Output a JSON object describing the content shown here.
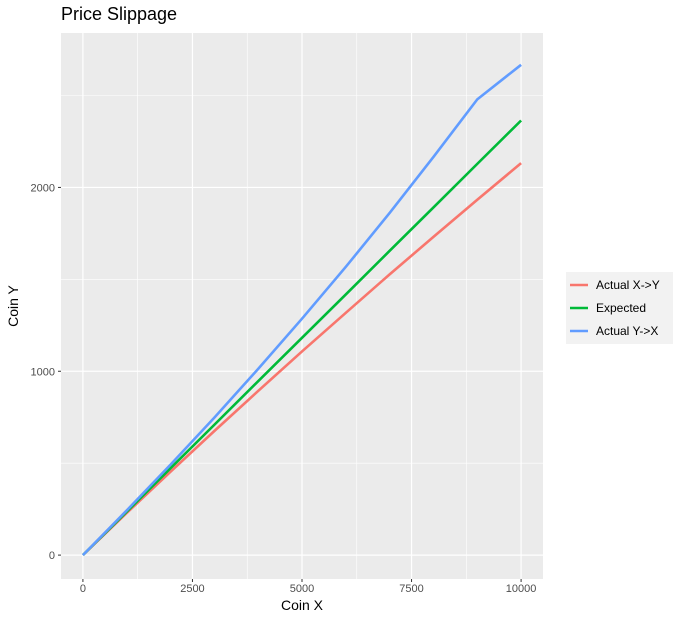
{
  "chart_data": {
    "type": "line",
    "title": "Price Slippage",
    "xlabel": "Coin X",
    "ylabel": "Coin Y",
    "xlim": [
      -500,
      10500
    ],
    "ylim": [
      -130,
      2840
    ],
    "x_ticks": [
      0,
      2500,
      5000,
      7500,
      10000
    ],
    "y_ticks": [
      0,
      1000,
      2000
    ],
    "x_tick_labels": [
      "0",
      "2500",
      "5000",
      "7500",
      "10000"
    ],
    "y_tick_labels": [
      "0",
      "1000",
      "2000"
    ],
    "grid": true,
    "legend_position": "right",
    "x": [
      0,
      1000,
      2000,
      3000,
      4000,
      5000,
      6000,
      7000,
      8000,
      9000,
      10000
    ],
    "series": [
      {
        "name": "Actual X->Y",
        "color": "#F8766D",
        "values": [
          0,
          229,
          454,
          675,
          893,
          1108,
          1318,
          1527,
          1731,
          1933,
          2132
        ]
      },
      {
        "name": "Expected",
        "color": "#00BA38",
        "values": [
          0,
          236,
          473,
          709,
          946,
          1182,
          1418,
          1655,
          1891,
          2128,
          2364
        ]
      },
      {
        "name": "Actual Y->X",
        "color": "#619CFF",
        "values": [
          0,
          243,
          492,
          748,
          1013,
          1286,
          1568,
          1861,
          2166,
          2479,
          2667
        ]
      }
    ]
  }
}
